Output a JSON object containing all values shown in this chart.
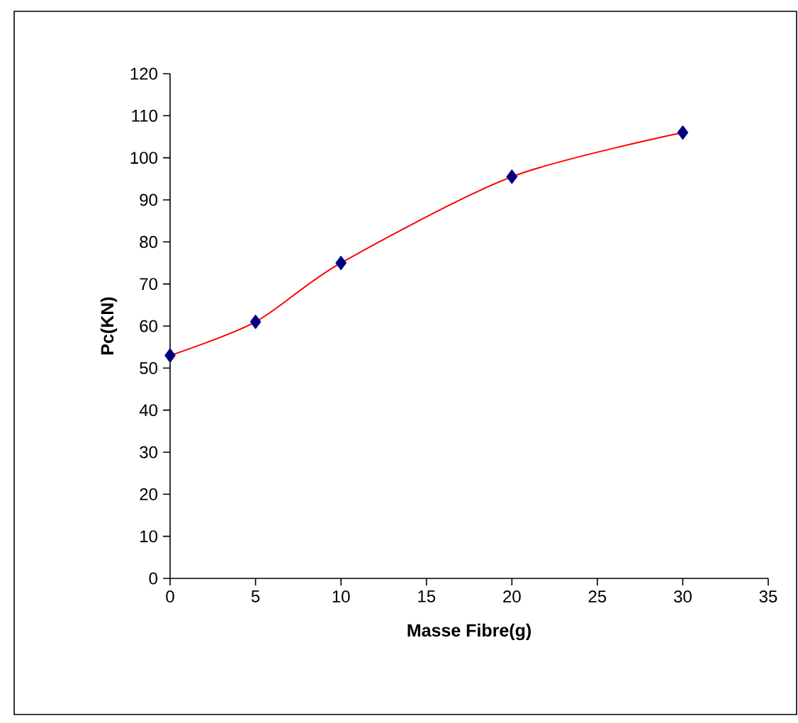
{
  "chart_data": {
    "type": "line",
    "xlabel": "Masse Fibre(g)",
    "ylabel": "Pc(KN)",
    "xlim": [
      0,
      35
    ],
    "xticks": [
      0,
      5,
      10,
      15,
      20,
      25,
      30,
      35
    ],
    "ylim": [
      0,
      120
    ],
    "yticks": [
      0,
      10,
      20,
      30,
      40,
      50,
      60,
      70,
      80,
      90,
      100,
      110,
      120
    ],
    "grid": false,
    "series": [
      {
        "color": "#ff0000",
        "marker": "none",
        "x": [
          0,
          5,
          10,
          20,
          30
        ],
        "values": [
          53,
          61,
          75,
          95.5,
          106
        ]
      },
      {
        "type": "scatter",
        "color": "#000080",
        "marker": "diamond",
        "x": [
          0,
          5,
          10,
          20,
          30
        ],
        "values": [
          53,
          61,
          75,
          95.5,
          106
        ]
      }
    ]
  }
}
